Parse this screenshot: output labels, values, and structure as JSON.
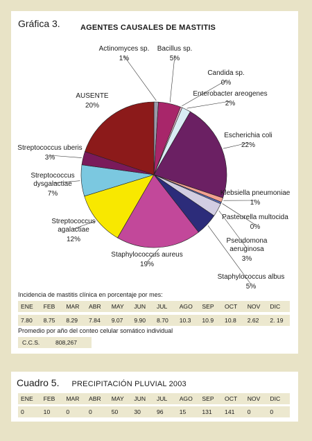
{
  "figure_label": "Gráfica 3.",
  "chart_title": "AGENTES CAUSALES DE MASTITIS",
  "chart_data": {
    "type": "pie",
    "slices": [
      {
        "label": "Actinomyces sp.",
        "value": "1%",
        "pct": 1,
        "color": "#9a9aaa"
      },
      {
        "label": "Bacillus sp.",
        "value": "5%",
        "pct": 5,
        "color": "#a8266a"
      },
      {
        "label": "Candida sp.",
        "value": "0%",
        "pct": 0.4,
        "color": "#e8b4c8"
      },
      {
        "label": "Enterobacter areogenes",
        "value": "2%",
        "pct": 2,
        "color": "#d9ecf4"
      },
      {
        "label": "Escherichia coli",
        "value": "22%",
        "pct": 22,
        "color": "#6b2063"
      },
      {
        "label": "Klebsiella pneumoniae",
        "value": "1%",
        "pct": 1,
        "color": "#f2a090"
      },
      {
        "label": "Pasteurella multocida",
        "value": "0%",
        "pct": 0.4,
        "color": "#5a6fc0"
      },
      {
        "label": "Pseudomona aeruginosa",
        "value": "3%",
        "pct": 3,
        "color": "#d2cde2"
      },
      {
        "label": "Staphylococcus albus",
        "value": "5%",
        "pct": 5,
        "color": "#2c2c7a"
      },
      {
        "label": "Staphylococcus aureus",
        "value": "19%",
        "pct": 19,
        "color": "#c2489a"
      },
      {
        "label": "Streptococcus agalactiae",
        "value": "12%",
        "pct": 12,
        "color": "#f8e800"
      },
      {
        "label": "Streptococcus dysgalactiae",
        "value": "7%",
        "pct": 7,
        "color": "#7bc8e0"
      },
      {
        "label": "Streptococcus uberis",
        "value": "3%",
        "pct": 3,
        "color": "#7a1a5a"
      },
      {
        "label": "AUSENTE",
        "value": "20%",
        "pct": 20,
        "color": "#8c1a1a"
      }
    ]
  },
  "incidence": {
    "caption": "Incidencia de mastitis clínica en porcentaje por mes:",
    "months": [
      "ENE",
      "FEB",
      "MAR",
      "ABR",
      "MAY",
      "JUN",
      "JUL",
      "AGO",
      "SEP",
      "OCT",
      "NOV",
      "DIC"
    ],
    "values": [
      "7.80",
      "8.75",
      "8.29",
      "7.84",
      "9.07",
      "9.90",
      "8.70",
      "10.3",
      "10.9",
      "10.8",
      "2.62",
      "2. 19"
    ]
  },
  "ccs": {
    "caption": "Promedio por año del conteo celular somático individual",
    "label": "C.C.S.",
    "value": "808,267"
  },
  "cuadro": {
    "number": "Cuadro 5.",
    "title": "PRECIPITACIÓN PLUVIAL 2003",
    "months": [
      "ENE",
      "FEB",
      "MAR",
      "ABR",
      "MAY",
      "JUN",
      "JUL",
      "AGO",
      "SEP",
      "OCT",
      "NOV",
      "DIC"
    ],
    "values": [
      "0",
      "10",
      "0",
      "0",
      "50",
      "30",
      "96",
      "15",
      "131",
      "141",
      "0",
      "0"
    ]
  }
}
